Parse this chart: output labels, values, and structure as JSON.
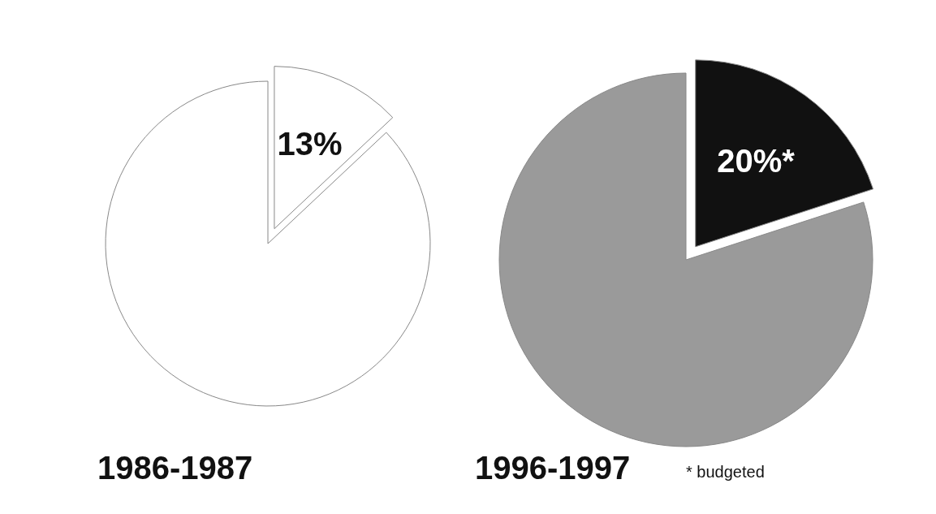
{
  "chart_data": [
    {
      "type": "pie",
      "title": "1986-1987",
      "categories": [
        null,
        null
      ],
      "values": [
        13,
        87
      ],
      "colors": [
        "#ffffff",
        "#ffffff"
      ],
      "value_labels": [
        "13%",
        null
      ]
    },
    {
      "type": "pie",
      "title": "1996-1997",
      "categories": [
        null,
        null
      ],
      "values": [
        20,
        80
      ],
      "colors": [
        "#111111",
        "#9a9a9a"
      ],
      "value_labels": [
        "20%*",
        null
      ],
      "annotations": [
        "* budgeted"
      ]
    }
  ]
}
